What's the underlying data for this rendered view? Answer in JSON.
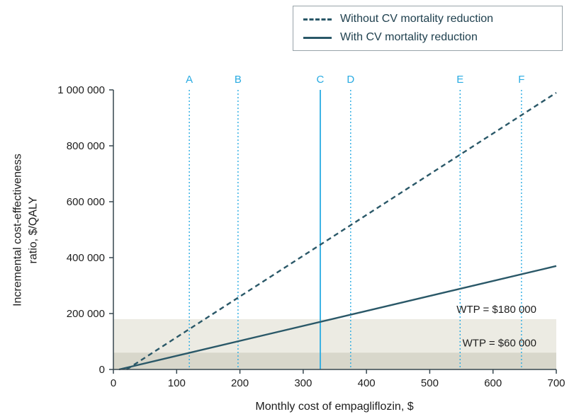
{
  "chart_data": {
    "type": "line",
    "title": "",
    "xlabel": "Monthly cost of empagliflozin, $",
    "ylabel": "Incremental cost-effectiveness ratio, $/QALY",
    "ylabel_lines": [
      "Incremental cost-effectiveness",
      "ratio, $/QALY"
    ],
    "xlim": [
      0,
      700
    ],
    "ylim": [
      0,
      1000000
    ],
    "grid": false,
    "x_ticks": [
      {
        "value": 0,
        "label": "0"
      },
      {
        "value": 100,
        "label": "100"
      },
      {
        "value": 200,
        "label": "200"
      },
      {
        "value": 300,
        "label": "300"
      },
      {
        "value": 400,
        "label": "400"
      },
      {
        "value": 500,
        "label": "500"
      },
      {
        "value": 600,
        "label": "600"
      },
      {
        "value": 700,
        "label": "700"
      }
    ],
    "y_ticks": [
      {
        "value": 0,
        "label": "0"
      },
      {
        "value": 200000,
        "label": "200 000"
      },
      {
        "value": 400000,
        "label": "400 000"
      },
      {
        "value": 600000,
        "label": "600 000"
      },
      {
        "value": 800000,
        "label": "800 000"
      },
      {
        "value": 1000000,
        "label": "1 000 000"
      }
    ],
    "series": [
      {
        "name": "Without CV mortality reduction",
        "style": "dashed",
        "color": "#2a5868",
        "points": [
          [
            21,
            0
          ],
          [
            700,
            990000
          ]
        ]
      },
      {
        "name": "With CV mortality reduction",
        "style": "solid",
        "color": "#2a5868",
        "points": [
          [
            9,
            0
          ],
          [
            700,
            370000
          ]
        ]
      }
    ],
    "vertical_markers": [
      {
        "label": "A",
        "x": 120,
        "style": "dotted"
      },
      {
        "label": "B",
        "x": 197,
        "style": "dotted"
      },
      {
        "label": "C",
        "x": 327,
        "style": "solid"
      },
      {
        "label": "D",
        "x": 375,
        "style": "dotted"
      },
      {
        "label": "E",
        "x": 548,
        "style": "dotted"
      },
      {
        "label": "F",
        "x": 645,
        "style": "dotted"
      }
    ],
    "marker_color": "#29abe2",
    "wtp_bands": [
      {
        "label": "WTP = $180 000",
        "value": 180000,
        "color": "#ecebe3"
      },
      {
        "label": "WTP = $60 000",
        "value": 60000,
        "color": "#d8d7cb"
      }
    ],
    "legend": {
      "position": "top-right",
      "entries": [
        {
          "label": "Without CV mortality reduction",
          "style": "dashed"
        },
        {
          "label": "With CV mortality reduction",
          "style": "solid"
        }
      ]
    },
    "axis_color": "#37474f",
    "line_color": "#2a5868"
  }
}
